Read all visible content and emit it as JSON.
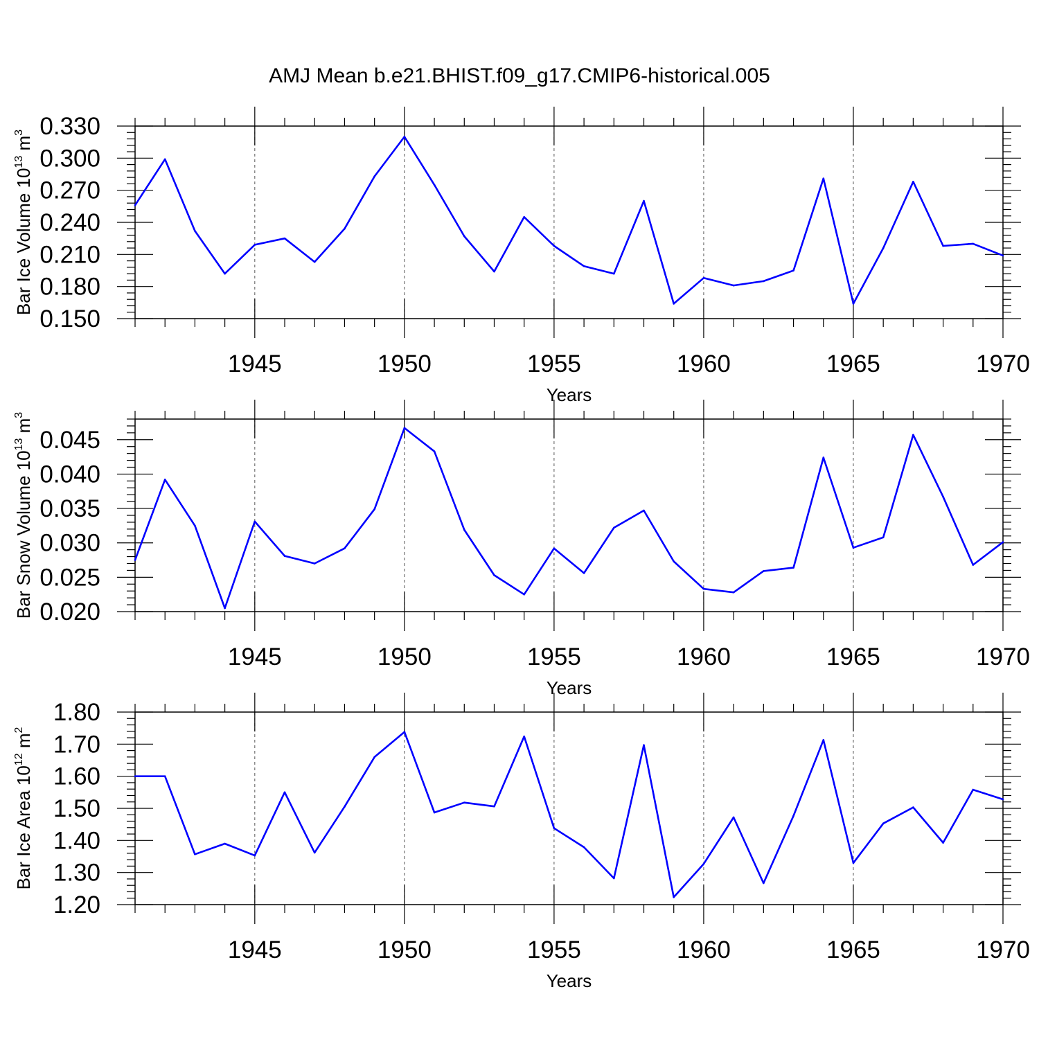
{
  "figure": {
    "title": "AMJ Mean b.e21.BHIST.f09_g17.CMIP6-historical.005"
  },
  "colors": {
    "series": "#0000ff",
    "axis": "#000000",
    "grid": "#555555"
  },
  "chart_data": [
    {
      "type": "line",
      "id": "ice-volume",
      "title": "",
      "xlabel": "Years",
      "ylabel": {
        "prefix": "Bar Ice Volume 10",
        "exp": "13",
        "unit": " m",
        "unit_exp": "3"
      },
      "xlim": [
        1941,
        1970
      ],
      "ylim": [
        0.15,
        0.33
      ],
      "xticks": [
        1945,
        1950,
        1955,
        1960,
        1965,
        1970
      ],
      "yticks": [
        0.15,
        0.18,
        0.21,
        0.24,
        0.27,
        0.3,
        0.33
      ],
      "ytick_labels": [
        "0.150",
        "0.180",
        "0.210",
        "0.240",
        "0.270",
        "0.300",
        "0.330"
      ],
      "yminor_step": 0.006,
      "grid": "vertical dashed at major x ticks",
      "x": [
        1941,
        1942,
        1943,
        1944,
        1945,
        1946,
        1947,
        1948,
        1949,
        1950,
        1951,
        1952,
        1953,
        1954,
        1955,
        1956,
        1957,
        1958,
        1959,
        1960,
        1961,
        1962,
        1963,
        1964,
        1965,
        1966,
        1967,
        1968,
        1969,
        1970
      ],
      "values": [
        0.256,
        0.299,
        0.232,
        0.192,
        0.219,
        0.225,
        0.203,
        0.234,
        0.283,
        0.32,
        0.275,
        0.227,
        0.194,
        0.245,
        0.218,
        0.199,
        0.192,
        0.26,
        0.164,
        0.188,
        0.181,
        0.185,
        0.195,
        0.281,
        0.164,
        0.216,
        0.278,
        0.218,
        0.22,
        0.209
      ]
    },
    {
      "type": "line",
      "id": "snow-volume",
      "title": "",
      "xlabel": "Years",
      "ylabel": {
        "prefix": "Bar Snow Volume 10",
        "exp": "13",
        "unit": " m",
        "unit_exp": "3"
      },
      "xlim": [
        1941,
        1970
      ],
      "ylim": [
        0.02,
        0.048
      ],
      "xticks": [
        1945,
        1950,
        1955,
        1960,
        1965,
        1970
      ],
      "yticks": [
        0.02,
        0.025,
        0.03,
        0.035,
        0.04,
        0.045
      ],
      "ytick_labels": [
        "0.020",
        "0.025",
        "0.030",
        "0.035",
        "0.040",
        "0.045"
      ],
      "yminor_step": 0.001,
      "grid": "vertical dashed at major x ticks",
      "x": [
        1941,
        1942,
        1943,
        1944,
        1945,
        1946,
        1947,
        1948,
        1949,
        1950,
        1951,
        1952,
        1953,
        1954,
        1955,
        1956,
        1957,
        1958,
        1959,
        1960,
        1961,
        1962,
        1963,
        1964,
        1965,
        1966,
        1967,
        1968,
        1969,
        1970
      ],
      "values": [
        0.0275,
        0.0392,
        0.0325,
        0.0205,
        0.0331,
        0.0281,
        0.027,
        0.0292,
        0.0349,
        0.0467,
        0.0433,
        0.0319,
        0.0253,
        0.0225,
        0.0292,
        0.0256,
        0.0322,
        0.0347,
        0.0273,
        0.0233,
        0.0228,
        0.0259,
        0.0264,
        0.0424,
        0.0293,
        0.0308,
        0.0457,
        0.0367,
        0.0268,
        0.0301
      ]
    },
    {
      "type": "line",
      "id": "ice-area",
      "title": "",
      "xlabel": "Years",
      "ylabel": {
        "prefix": "Bar Ice Area 10",
        "exp": "12",
        "unit": " m",
        "unit_exp": "2"
      },
      "xlim": [
        1941,
        1970
      ],
      "ylim": [
        1.2,
        1.8
      ],
      "xticks": [
        1945,
        1950,
        1955,
        1960,
        1965,
        1970
      ],
      "yticks": [
        1.2,
        1.3,
        1.4,
        1.5,
        1.6,
        1.7,
        1.8
      ],
      "ytick_labels": [
        "1.20",
        "1.30",
        "1.40",
        "1.50",
        "1.60",
        "1.70",
        "1.80"
      ],
      "yminor_step": 0.02,
      "grid": "vertical dashed at major x ticks",
      "x": [
        1941,
        1942,
        1943,
        1944,
        1945,
        1946,
        1947,
        1948,
        1949,
        1950,
        1951,
        1952,
        1953,
        1954,
        1955,
        1956,
        1957,
        1958,
        1959,
        1960,
        1961,
        1962,
        1963,
        1964,
        1965,
        1966,
        1967,
        1968,
        1969,
        1970
      ],
      "values": [
        1.6,
        1.6,
        1.357,
        1.39,
        1.353,
        1.55,
        1.362,
        1.505,
        1.66,
        1.738,
        1.487,
        1.518,
        1.506,
        1.724,
        1.438,
        1.379,
        1.282,
        1.697,
        1.223,
        1.327,
        1.472,
        1.267,
        1.477,
        1.713,
        1.33,
        1.453,
        1.503,
        1.393,
        1.558,
        1.528
      ]
    }
  ]
}
